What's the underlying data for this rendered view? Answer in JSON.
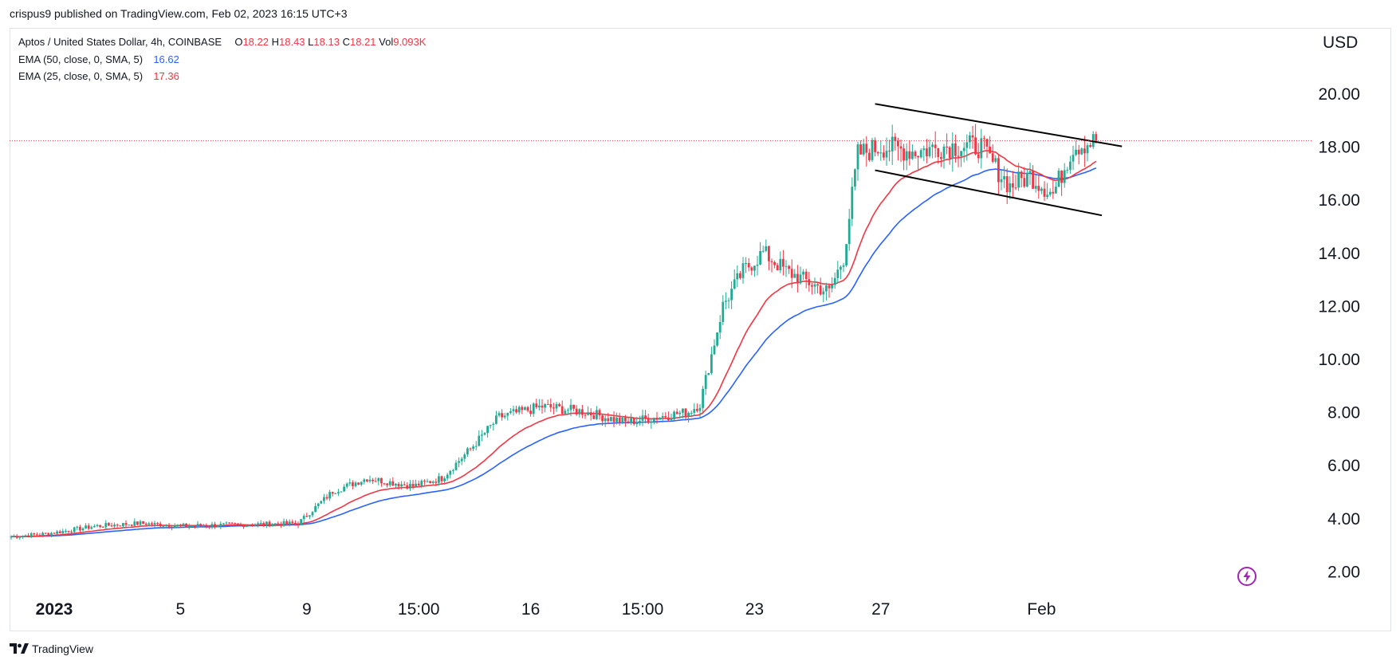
{
  "header": {
    "published_by": "crispus9 published on TradingView.com, Feb 02, 2023 16:15 UTC+3"
  },
  "legend": {
    "symbol": "Aptos / United States Dollar, 4h, COINBASE",
    "open_label": "O",
    "open": "18.22",
    "high_label": "H",
    "high": "18.43",
    "low_label": "L",
    "low": "18.13",
    "close_label": "C",
    "close": "18.21",
    "vol_label": "Vol",
    "vol": "9.093K",
    "ema50_label": "EMA (50, close, 0, SMA, 5)",
    "ema50_value": "16.62",
    "ema25_label": "EMA (25, close, 0, SMA, 5)",
    "ema25_value": "17.36"
  },
  "axis": {
    "currency": "USD"
  },
  "footer": {
    "brand": "TradingView"
  },
  "colors": {
    "up": "#22ab94",
    "down": "#f23645",
    "ema25": "#f23645",
    "ema50": "#2962ff",
    "channel": "#000000"
  },
  "chart_data": {
    "type": "candlestick",
    "symbol": "Aptos / United States Dollar",
    "interval": "4h",
    "exchange": "COINBASE",
    "y_axis": {
      "currency": "USD",
      "ticks": [
        2,
        4,
        6,
        8,
        10,
        12,
        14,
        16,
        18,
        20
      ],
      "ylim": [
        1.2,
        21.8
      ]
    },
    "x_axis": {
      "ticks": [
        {
          "label": "2023",
          "bar": 15
        },
        {
          "label": "5",
          "bar": 59
        },
        {
          "label": "9",
          "bar": 103
        },
        {
          "label": "15:00",
          "bar": 142
        },
        {
          "label": "16",
          "bar": 181
        },
        {
          "label": "15:00",
          "bar": 220
        },
        {
          "label": "23",
          "bar": 259
        },
        {
          "label": "27",
          "bar": 303
        },
        {
          "label": "Feb",
          "bar": 359
        }
      ]
    },
    "last_price": 18.21,
    "ema50_last": 16.62,
    "ema25_last": 17.36,
    "price_path": [
      [
        0,
        3.3
      ],
      [
        12,
        3.4
      ],
      [
        30,
        3.7
      ],
      [
        45,
        3.8
      ],
      [
        60,
        3.7
      ],
      [
        80,
        3.75
      ],
      [
        100,
        3.8
      ],
      [
        112,
        5.0
      ],
      [
        124,
        5.5
      ],
      [
        140,
        5.2
      ],
      [
        150,
        5.5
      ],
      [
        160,
        6.6
      ],
      [
        170,
        7.8
      ],
      [
        185,
        8.2
      ],
      [
        200,
        8.0
      ],
      [
        214,
        7.6
      ],
      [
        225,
        7.8
      ],
      [
        236,
        8.0
      ],
      [
        240,
        8.3
      ],
      [
        248,
        12.0
      ],
      [
        255,
        13.3
      ],
      [
        262,
        14.0
      ],
      [
        270,
        13.3
      ],
      [
        285,
        12.5
      ],
      [
        290,
        13.8
      ],
      [
        295,
        17.7
      ],
      [
        303,
        18.0
      ],
      [
        315,
        17.8
      ],
      [
        325,
        18.0
      ],
      [
        338,
        18.0
      ],
      [
        343,
        17.2
      ],
      [
        348,
        16.5
      ],
      [
        355,
        16.9
      ],
      [
        363,
        16.2
      ],
      [
        370,
        18.0
      ],
      [
        378,
        18.2
      ]
    ],
    "channel_lines": [
      {
        "name": "upper",
        "points": [
          [
            301,
            19.6
          ],
          [
            387,
            18.0
          ]
        ]
      },
      {
        "name": "lower",
        "points": [
          [
            301,
            17.1
          ],
          [
            380,
            15.4
          ]
        ]
      }
    ],
    "series": [
      {
        "name": "EMA (50, close, 0, SMA, 5)",
        "last": 16.62
      },
      {
        "name": "EMA (25, close, 0, SMA, 5)",
        "last": 17.36
      }
    ]
  }
}
